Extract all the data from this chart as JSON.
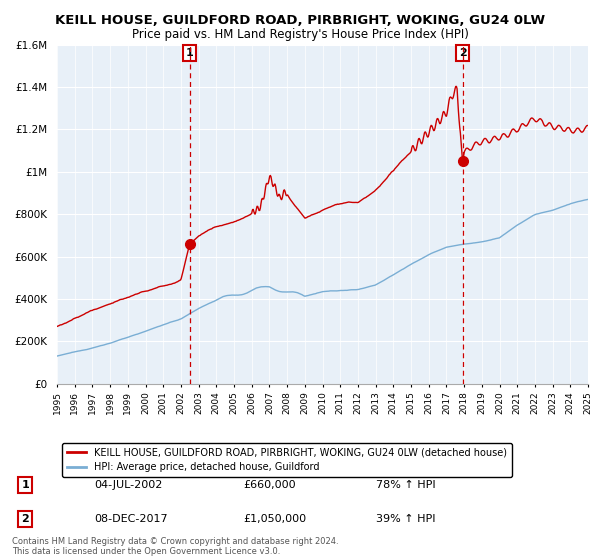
{
  "title": "KEILL HOUSE, GUILDFORD ROAD, PIRBRIGHT, WOKING, GU24 0LW",
  "subtitle": "Price paid vs. HM Land Registry's House Price Index (HPI)",
  "legend_line1": "KEILL HOUSE, GUILDFORD ROAD, PIRBRIGHT, WOKING, GU24 0LW (detached house)",
  "legend_line2": "HPI: Average price, detached house, Guildford",
  "transaction1_label": "1",
  "transaction1_date": "04-JUL-2002",
  "transaction1_price": "£660,000",
  "transaction1_hpi": "78% ↑ HPI",
  "transaction1_year": 2002.5,
  "transaction1_value": 660000,
  "transaction2_label": "2",
  "transaction2_date": "08-DEC-2017",
  "transaction2_price": "£1,050,000",
  "transaction2_hpi": "39% ↑ HPI",
  "transaction2_year": 2017.92,
  "transaction2_value": 1050000,
  "ylim": [
    0,
    1600000
  ],
  "xlim": [
    1995,
    2025
  ],
  "red_color": "#cc0000",
  "blue_color": "#7aaed4",
  "blue_fill_color": "#ddeeff",
  "vline_color": "#cc0000",
  "background_color": "#ffffff",
  "chart_bg_color": "#e8f0f8",
  "grid_color": "#ffffff",
  "footnote1": "Contains HM Land Registry data © Crown copyright and database right 2024.",
  "footnote2": "This data is licensed under the Open Government Licence v3.0."
}
